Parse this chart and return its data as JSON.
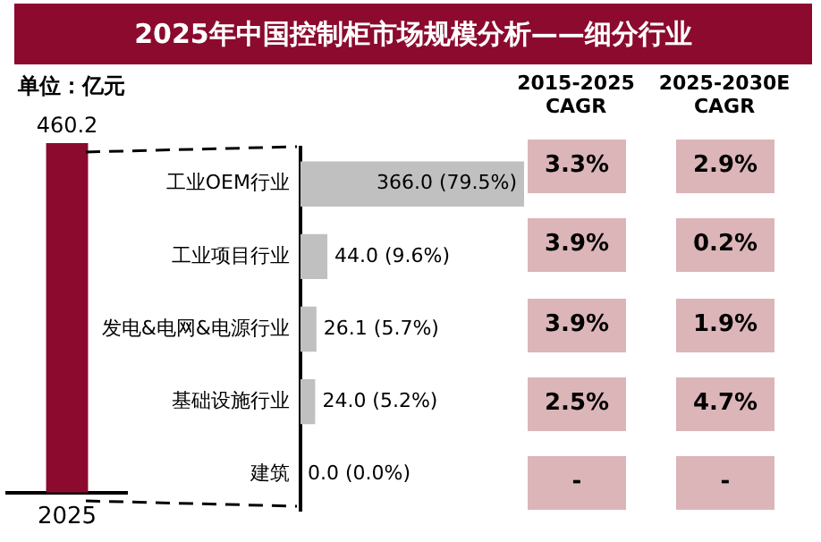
{
  "chart_data": [
    {
      "type": "bar",
      "title": "2025年中国控制柜市场规模分析——细分行业",
      "annotations": [
        "单位：亿元"
      ],
      "orientation": "horizontal",
      "categories": [
        "工业OEM行业",
        "工业项目行业",
        "发电&电网&电源行业",
        "基础设施行业",
        "建筑"
      ],
      "values": [
        366.0,
        44.0,
        26.1,
        24.0,
        0.0
      ],
      "value_labels": [
        "366.0 (79.5%)",
        "44.0 (9.6%)",
        "26.1 (5.7%)",
        "24.0 (5.2%)",
        "0.0 (0.0%)"
      ],
      "color": "#c0c0c0",
      "xlim": [
        0,
        366
      ],
      "tick_labels": "y",
      "legend": false
    },
    {
      "type": "bar",
      "categories": [
        "2025"
      ],
      "values": [
        460.2
      ],
      "color": "#8b0a2e",
      "ylim": [
        0,
        460.2
      ],
      "data_labels": true,
      "tick_labels": "x",
      "legend": false
    },
    {
      "type": "other",
      "categories": [
        "2015-2025 CAGR",
        "2025-2030E CAGR"
      ],
      "annotations": [
        "3.3%",
        "2.9%",
        "3.9%",
        "0.2%",
        "3.9%",
        "1.9%",
        "2.5%",
        "4.7%",
        "-",
        "-"
      ],
      "color": "#dcb5b9"
    }
  ]
}
